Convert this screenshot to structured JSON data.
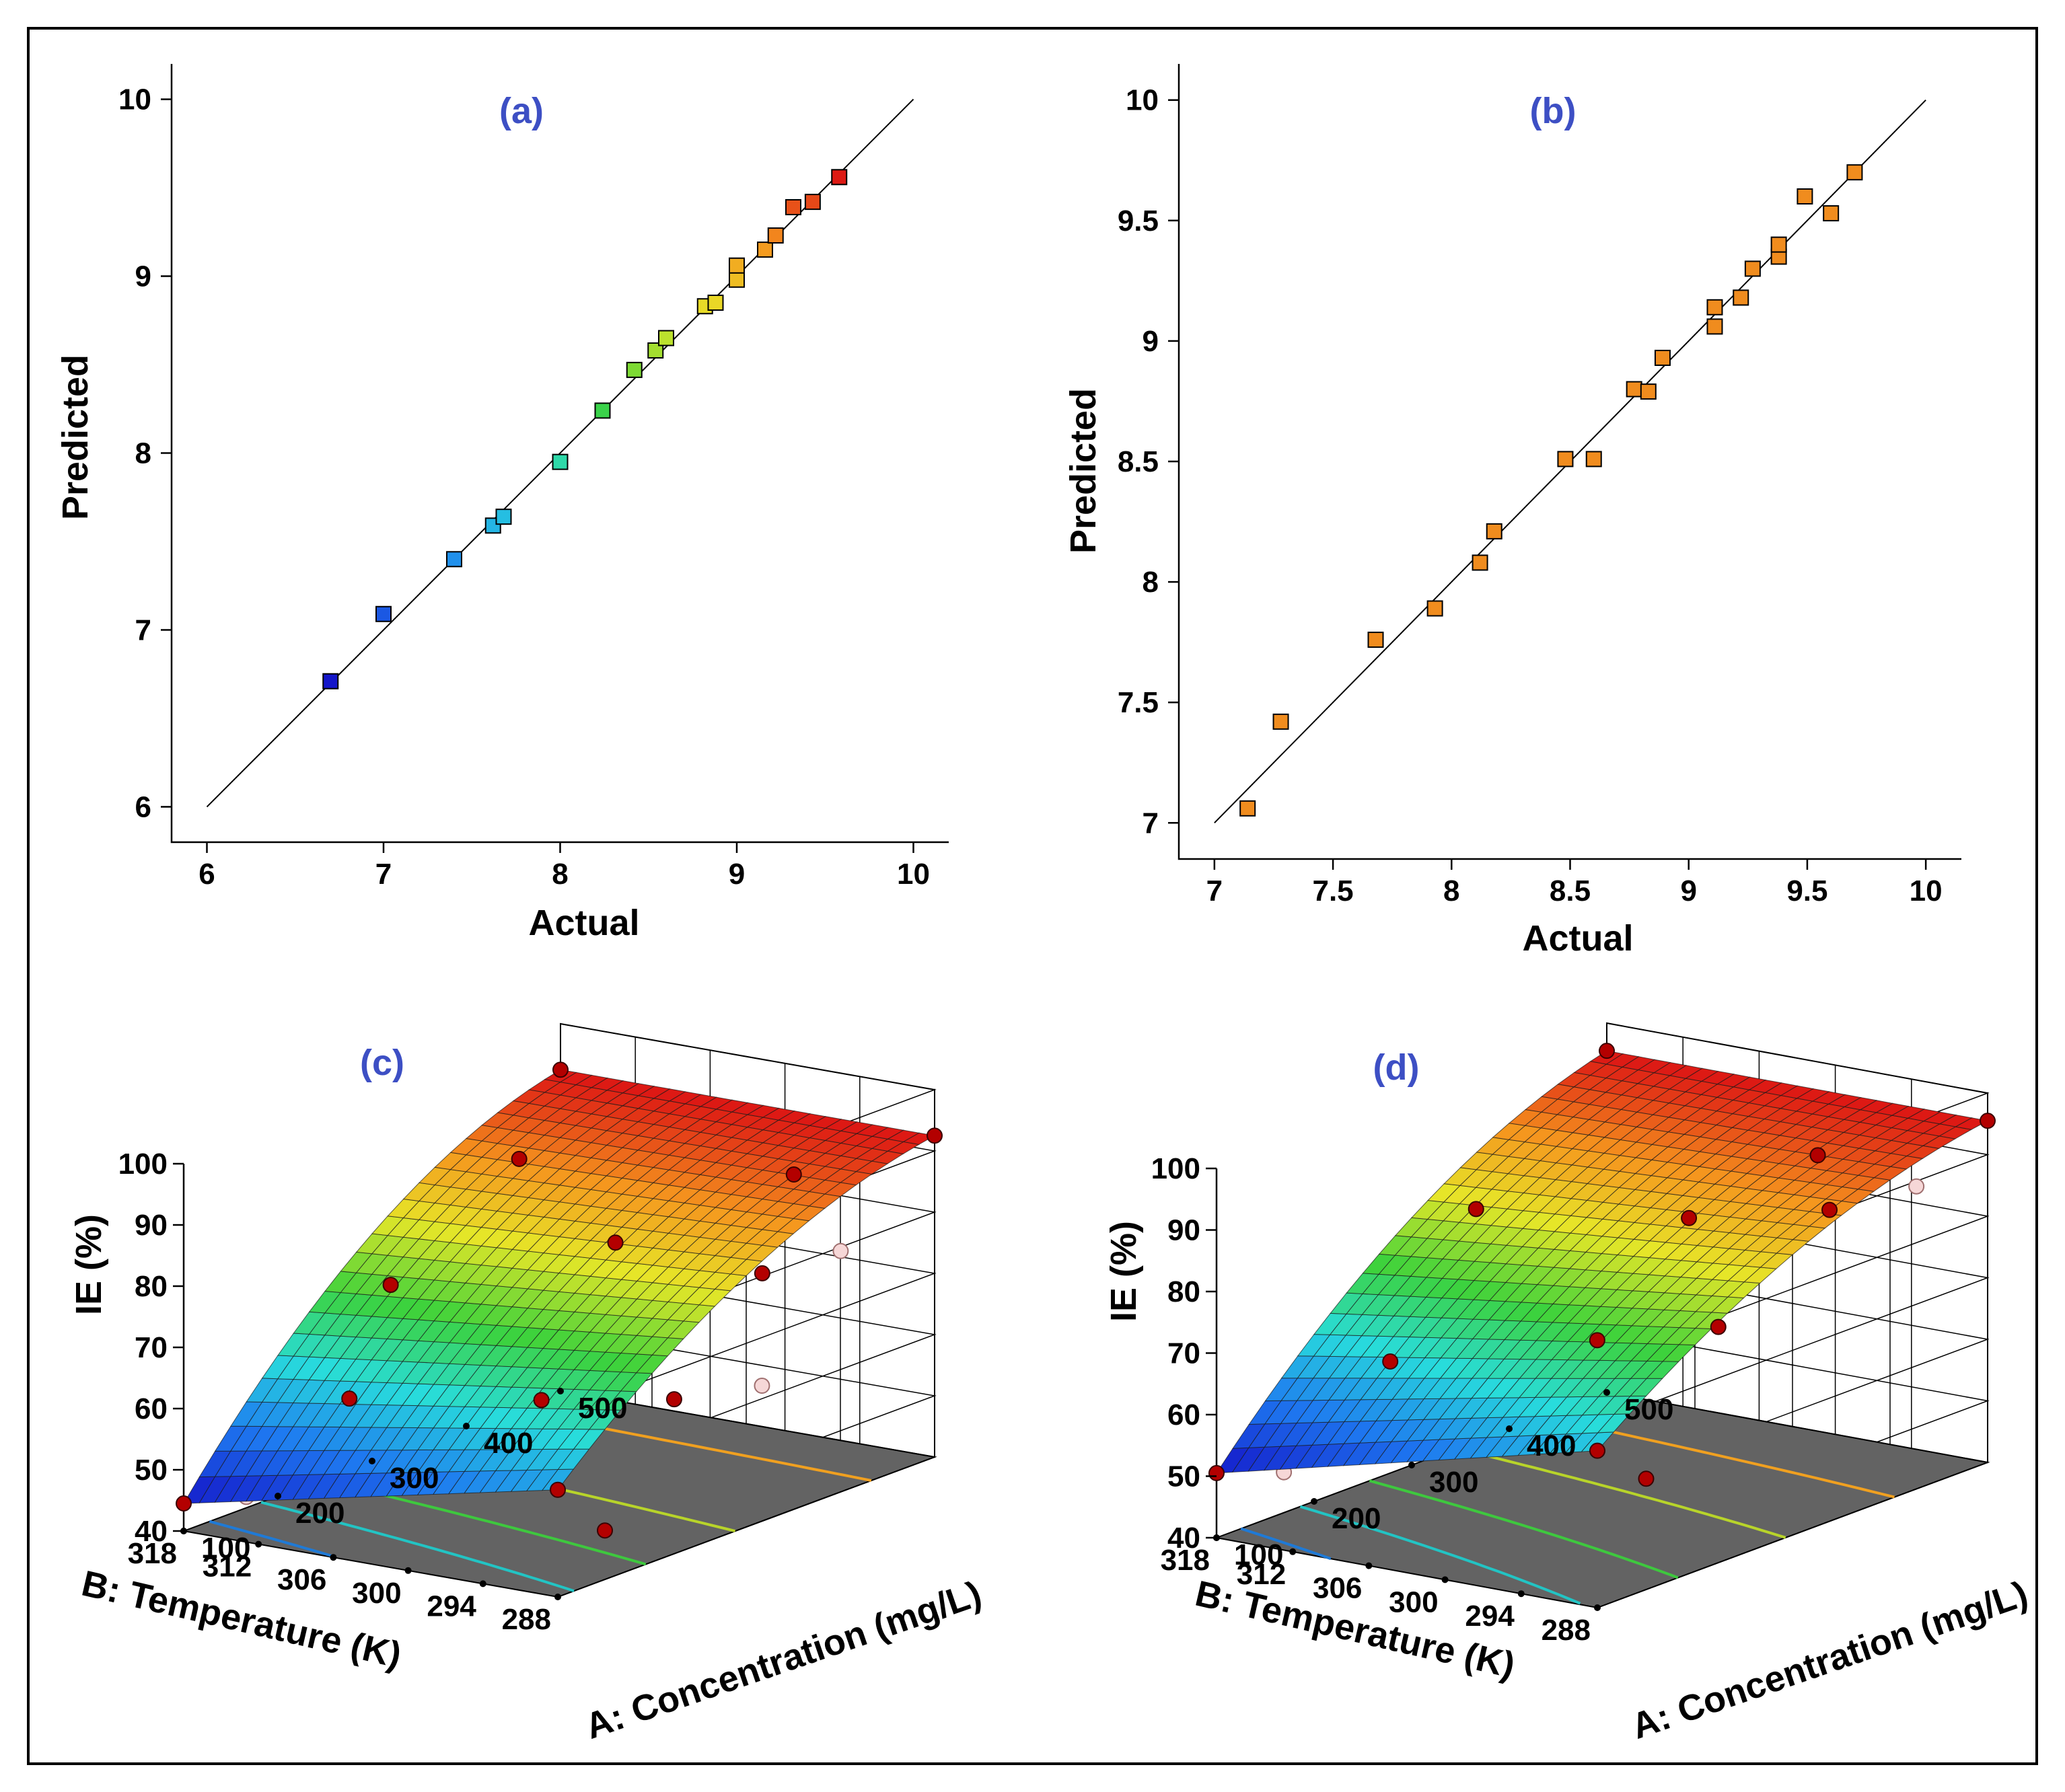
{
  "colors": {
    "panel_label": "#3d4fc4",
    "marker_b": "#f08c1e",
    "floor": "#636363",
    "point_above": "#b30000",
    "point_below": "#f6d7d7"
  },
  "chart_data": [
    {
      "type": "scatter",
      "label": "(a)",
      "xlabel": "Actual",
      "ylabel": "Predicted",
      "xlim": [
        5.8,
        10.2
      ],
      "ylim": [
        5.8,
        10.2
      ],
      "xticks": [
        "6",
        "7",
        "8",
        "9",
        "10"
      ],
      "yticks": [
        "6",
        "7",
        "8",
        "9",
        "10"
      ],
      "reference_line": [
        [
          6,
          6
        ],
        [
          10,
          10
        ]
      ],
      "color_scale": "rainbow-by-value",
      "points": [
        {
          "x": 6.7,
          "y": 6.71
        },
        {
          "x": 7.0,
          "y": 7.09
        },
        {
          "x": 7.4,
          "y": 7.4
        },
        {
          "x": 7.62,
          "y": 7.59
        },
        {
          "x": 7.68,
          "y": 7.64
        },
        {
          "x": 8.0,
          "y": 7.95
        },
        {
          "x": 8.24,
          "y": 8.24
        },
        {
          "x": 8.42,
          "y": 8.47
        },
        {
          "x": 8.54,
          "y": 8.58
        },
        {
          "x": 8.6,
          "y": 8.65
        },
        {
          "x": 8.82,
          "y": 8.83
        },
        {
          "x": 8.88,
          "y": 8.85
        },
        {
          "x": 9.0,
          "y": 8.98
        },
        {
          "x": 9.0,
          "y": 9.06
        },
        {
          "x": 9.16,
          "y": 9.15
        },
        {
          "x": 9.22,
          "y": 9.23
        },
        {
          "x": 9.32,
          "y": 9.39
        },
        {
          "x": 9.43,
          "y": 9.42
        },
        {
          "x": 9.58,
          "y": 9.56
        }
      ]
    },
    {
      "type": "scatter",
      "label": "(b)",
      "xlabel": "Actual",
      "ylabel": "Predicted",
      "xlim": [
        6.85,
        10.15
      ],
      "ylim": [
        6.85,
        10.15
      ],
      "xticks": [
        "7",
        "7.5",
        "8",
        "8.5",
        "9",
        "9.5",
        "10"
      ],
      "yticks": [
        "7",
        "7.5",
        "8",
        "8.5",
        "9",
        "9.5",
        "10"
      ],
      "reference_line": [
        [
          7,
          7
        ],
        [
          10,
          10
        ]
      ],
      "points": [
        {
          "x": 7.14,
          "y": 7.06
        },
        {
          "x": 7.28,
          "y": 7.42
        },
        {
          "x": 7.68,
          "y": 7.76
        },
        {
          "x": 7.93,
          "y": 7.89
        },
        {
          "x": 8.12,
          "y": 8.08
        },
        {
          "x": 8.18,
          "y": 8.21
        },
        {
          "x": 8.48,
          "y": 8.51
        },
        {
          "x": 8.6,
          "y": 8.51
        },
        {
          "x": 8.77,
          "y": 8.8
        },
        {
          "x": 8.83,
          "y": 8.79
        },
        {
          "x": 8.89,
          "y": 8.93
        },
        {
          "x": 9.11,
          "y": 9.06
        },
        {
          "x": 9.11,
          "y": 9.14
        },
        {
          "x": 9.22,
          "y": 9.18
        },
        {
          "x": 9.27,
          "y": 9.3
        },
        {
          "x": 9.38,
          "y": 9.35
        },
        {
          "x": 9.38,
          "y": 9.4
        },
        {
          "x": 9.49,
          "y": 9.6
        },
        {
          "x": 9.6,
          "y": 9.53
        },
        {
          "x": 9.7,
          "y": 9.7
        }
      ]
    },
    {
      "type": "surface3d",
      "label": "(c)",
      "zlabel": "IE (%)",
      "xlabel": "A: Concentration (mg/L)",
      "ylabel": "B: Temperature (K)",
      "x_ticks": [
        "100",
        "200",
        "300",
        "400",
        "500"
      ],
      "y_ticks": [
        "318",
        "312",
        "306",
        "300",
        "294",
        "288"
      ],
      "z_ticks": [
        "40",
        "50",
        "60",
        "70",
        "80",
        "90",
        "100"
      ],
      "corners": {
        "c100_t318": 44.5,
        "c500_t318": 92.5,
        "c100_t288": 57.5,
        "c500_t288": 92.5
      },
      "curvature": 0.18,
      "points": [
        {
          "conc": 100,
          "temp": 318,
          "ie": 44.5,
          "above": true
        },
        {
          "conc": 500,
          "temp": 318,
          "ie": 92.5,
          "above": true
        },
        {
          "conc": 100,
          "temp": 288,
          "ie": 57.5,
          "above": true
        },
        {
          "conc": 500,
          "temp": 288,
          "ie": 92.5,
          "above": true
        },
        {
          "conc": 170,
          "temp": 310,
          "ie": 60.5,
          "above": true
        },
        {
          "conc": 280,
          "temp": 315,
          "ie": 71.0,
          "above": true
        },
        {
          "conc": 390,
          "temp": 313,
          "ie": 86.0,
          "above": true
        },
        {
          "conc": 215,
          "temp": 298,
          "ie": 62.0,
          "above": true
        },
        {
          "conc": 320,
          "temp": 300,
          "ie": 81.0,
          "above": true
        },
        {
          "conc": 250,
          "temp": 290,
          "ie": 63.0,
          "above": true
        },
        {
          "conc": 370,
          "temp": 292,
          "ie": 76.0,
          "above": true
        },
        {
          "conc": 430,
          "temp": 294,
          "ie": 88.0,
          "above": true
        },
        {
          "conc": 150,
          "temp": 288,
          "ie": 48.0,
          "above": true
        },
        {
          "conc": 140,
          "temp": 316,
          "ie": 44.0,
          "above": false
        },
        {
          "conc": 300,
          "temp": 306,
          "ie": 68.0,
          "above": false
        },
        {
          "conc": 330,
          "temp": 289,
          "ie": 61.0,
          "above": false
        },
        {
          "conc": 440,
          "temp": 291,
          "ie": 76.0,
          "above": false
        }
      ],
      "floor_contours": [
        {
          "value": 50,
          "color": "#1f7ad6"
        },
        {
          "value": 60,
          "color": "#22c4c4"
        },
        {
          "value": 70,
          "color": "#3ec83e"
        },
        {
          "value": 80,
          "color": "#b8d42a"
        },
        {
          "value": 90,
          "color": "#f0a020"
        }
      ]
    },
    {
      "type": "surface3d",
      "label": "(d)",
      "zlabel": "IE (%)",
      "xlabel": "A: Concentration (mg/L)",
      "ylabel": "B: Temperature (K)",
      "x_ticks": [
        "100",
        "200",
        "300",
        "400",
        "500"
      ],
      "y_ticks": [
        "318",
        "312",
        "306",
        "300",
        "294",
        "288"
      ],
      "z_ticks": [
        "40",
        "50",
        "60",
        "70",
        "80",
        "90",
        "100"
      ],
      "corners": {
        "c100_t318": 50.5,
        "c500_t318": 95.5,
        "c100_t288": 65.5,
        "c500_t288": 95.5
      },
      "curvature": 0.16,
      "points": [
        {
          "conc": 100,
          "temp": 318,
          "ie": 50.5,
          "above": true
        },
        {
          "conc": 500,
          "temp": 318,
          "ie": 95.5,
          "above": true
        },
        {
          "conc": 100,
          "temp": 288,
          "ie": 65.5,
          "above": true
        },
        {
          "conc": 500,
          "temp": 288,
          "ie": 95.5,
          "above": true
        },
        {
          "conc": 200,
          "temp": 312,
          "ie": 65.0,
          "above": true
        },
        {
          "conc": 340,
          "temp": 316,
          "ie": 80.0,
          "above": true
        },
        {
          "conc": 230,
          "temp": 298,
          "ie": 72.0,
          "above": true
        },
        {
          "conc": 350,
          "temp": 300,
          "ie": 84.0,
          "above": true
        },
        {
          "conc": 250,
          "temp": 290,
          "ie": 76.0,
          "above": true
        },
        {
          "conc": 390,
          "temp": 292,
          "ie": 86.0,
          "above": true
        },
        {
          "conc": 430,
          "temp": 296,
          "ie": 91.0,
          "above": true
        },
        {
          "conc": 150,
          "temp": 288,
          "ie": 58.0,
          "above": true
        },
        {
          "conc": 130,
          "temp": 315,
          "ie": 50.0,
          "above": false
        },
        {
          "conc": 230,
          "temp": 316,
          "ie": 58.0,
          "above": false
        },
        {
          "conc": 360,
          "temp": 306,
          "ie": 78.0,
          "above": false
        },
        {
          "conc": 440,
          "temp": 289,
          "ie": 88.0,
          "above": false
        }
      ],
      "floor_contours": [
        {
          "value": 55,
          "color": "#1f7ad6"
        },
        {
          "value": 65,
          "color": "#22c4c4"
        },
        {
          "value": 75,
          "color": "#3ec83e"
        },
        {
          "value": 85,
          "color": "#b8d42a"
        },
        {
          "value": 92,
          "color": "#f0a020"
        }
      ]
    }
  ]
}
